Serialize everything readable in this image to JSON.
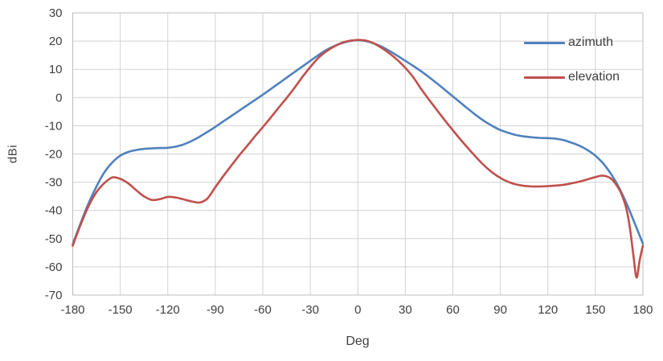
{
  "chart_data": {
    "type": "line",
    "title": "",
    "xlabel": "Deg",
    "ylabel": "dBi",
    "xlim": [
      -180,
      180
    ],
    "ylim": [
      -70,
      30
    ],
    "x_ticks": [
      -180,
      -150,
      -120,
      -90,
      -60,
      -30,
      0,
      30,
      60,
      90,
      120,
      150,
      180
    ],
    "y_ticks": [
      30,
      20,
      10,
      0,
      -10,
      -20,
      -30,
      -40,
      -50,
      -60,
      -70
    ],
    "grid": true,
    "legend": {
      "position": "top-right-inside",
      "entries": [
        "azimuth",
        "elevation"
      ]
    },
    "series": [
      {
        "name": "azimuth",
        "color": "#4f81bd",
        "x": [
          -180,
          -175,
          -170,
          -165,
          -160,
          -155,
          -150,
          -145,
          -140,
          -135,
          -130,
          -125,
          -120,
          -115,
          -110,
          -105,
          -100,
          -95,
          -90,
          -85,
          -80,
          -75,
          -70,
          -65,
          -60,
          -55,
          -50,
          -45,
          -40,
          -35,
          -30,
          -25,
          -20,
          -15,
          -10,
          -5,
          0,
          5,
          10,
          15,
          20,
          25,
          30,
          35,
          40,
          45,
          50,
          55,
          60,
          65,
          70,
          75,
          80,
          85,
          90,
          95,
          100,
          105,
          110,
          115,
          120,
          125,
          130,
          135,
          140,
          145,
          150,
          155,
          160,
          165,
          170,
          175,
          180
        ],
        "y": [
          -52,
          -44.5,
          -37.5,
          -31.5,
          -26.5,
          -23,
          -20.6,
          -19.3,
          -18.6,
          -18.2,
          -18,
          -17.9,
          -17.8,
          -17.4,
          -16.6,
          -15.4,
          -13.9,
          -12.2,
          -10.4,
          -8.5,
          -6.6,
          -4.7,
          -2.8,
          -0.9,
          1,
          3,
          5,
          7,
          9,
          11,
          13,
          15,
          16.8,
          18.2,
          19.3,
          20,
          20.3,
          20,
          19.2,
          18,
          16.5,
          14.8,
          13,
          11.2,
          9.3,
          7.2,
          5,
          2.7,
          0.4,
          -1.9,
          -4.2,
          -6.4,
          -8.4,
          -10.1,
          -11.5,
          -12.5,
          -13.3,
          -13.8,
          -14.1,
          -14.3,
          -14.4,
          -14.6,
          -15.1,
          -16,
          -17.1,
          -18.6,
          -20.6,
          -23.4,
          -27.2,
          -32,
          -38,
          -44.8,
          -51.8
        ]
      },
      {
        "name": "elevation",
        "color": "#c0504d",
        "x": [
          -180,
          -175,
          -170,
          -165,
          -160,
          -155,
          -150,
          -145,
          -140,
          -135,
          -130,
          -125,
          -120,
          -115,
          -110,
          -105,
          -100,
          -95,
          -90,
          -85,
          -80,
          -75,
          -70,
          -65,
          -60,
          -55,
          -50,
          -45,
          -40,
          -35,
          -30,
          -25,
          -20,
          -15,
          -10,
          -5,
          0,
          5,
          10,
          15,
          20,
          25,
          30,
          35,
          40,
          45,
          50,
          55,
          60,
          65,
          70,
          75,
          80,
          85,
          90,
          95,
          100,
          105,
          110,
          115,
          120,
          125,
          130,
          135,
          140,
          145,
          150,
          155,
          160,
          165,
          168,
          170,
          172,
          174,
          176,
          178,
          180
        ],
        "y": [
          -52.5,
          -45,
          -38.5,
          -33.5,
          -30.3,
          -28.3,
          -28.8,
          -30.4,
          -32.8,
          -35,
          -36.3,
          -36,
          -35.2,
          -35.4,
          -36.1,
          -36.8,
          -37.2,
          -35.8,
          -31.8,
          -27.9,
          -24.2,
          -20.6,
          -17.2,
          -13.8,
          -10.5,
          -7.1,
          -3.6,
          -0.2,
          3.4,
          7.3,
          10.8,
          14,
          16.3,
          18.1,
          19.4,
          20.1,
          20.4,
          20.2,
          19.2,
          17.6,
          15.6,
          13.3,
          10.5,
          7.2,
          3,
          -0.8,
          -4.5,
          -8.1,
          -11.6,
          -15,
          -18.2,
          -21.3,
          -24.2,
          -26.6,
          -28.5,
          -29.9,
          -30.8,
          -31.3,
          -31.5,
          -31.5,
          -31.4,
          -31.2,
          -30.9,
          -30.4,
          -29.8,
          -29,
          -28.2,
          -27.7,
          -28.8,
          -32.5,
          -36.5,
          -40.5,
          -47,
          -56,
          -63.8,
          -57.5,
          -52.5
        ]
      }
    ]
  },
  "colors": {
    "background": "#ffffff",
    "gridline": "#d2d2d2",
    "plot_border": "#bdbdbd",
    "tick_label": "#3f3f3f",
    "axis_title": "#3f3f3f"
  }
}
